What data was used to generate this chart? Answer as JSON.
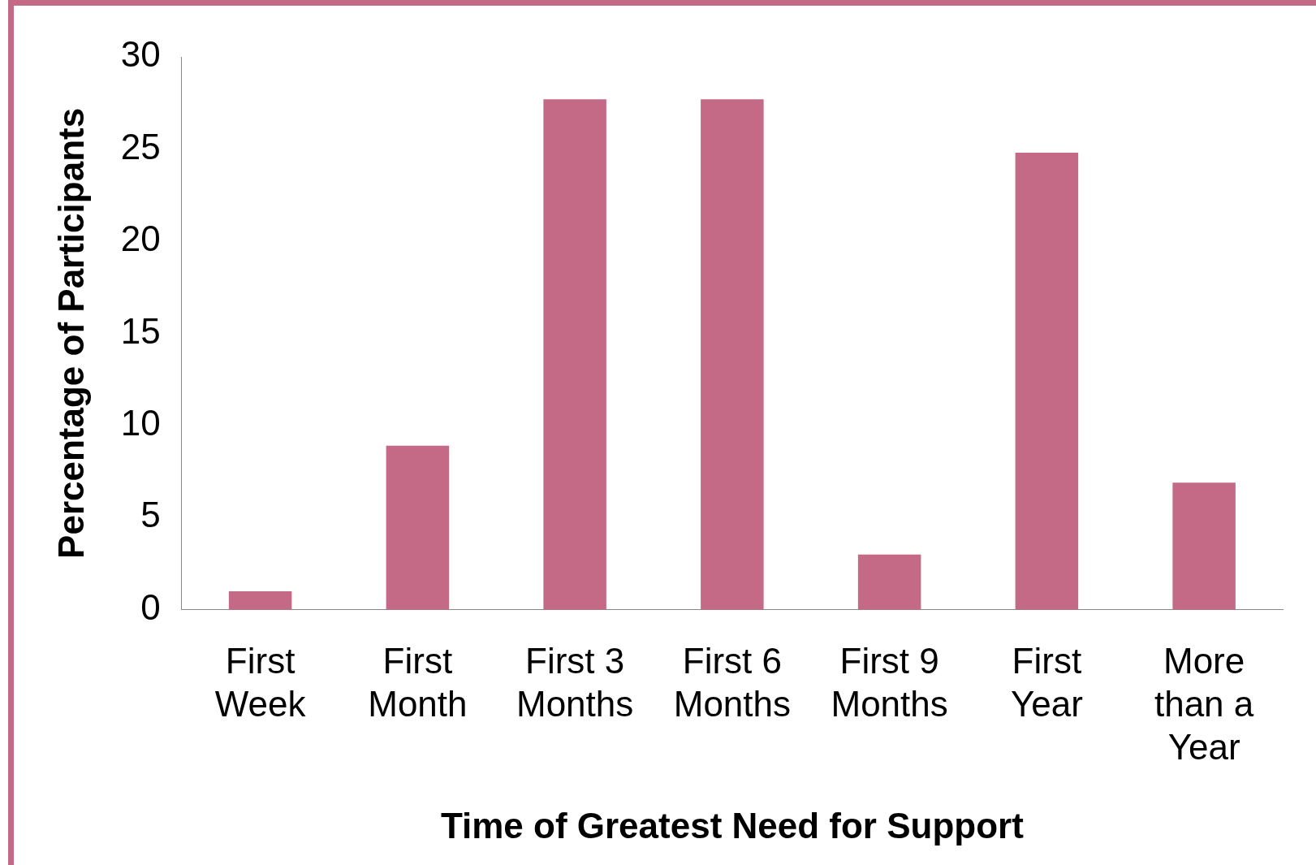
{
  "chart_data": {
    "type": "bar",
    "xlabel": "Time of Greatest Need for Support",
    "ylabel": "Percentage of Participants",
    "categories": [
      "First Week",
      "First Month",
      "First 3 Months",
      "First 6 Months",
      "First 9 Months",
      "First Year",
      "More than a Year"
    ],
    "values": [
      1,
      8.9,
      27.7,
      27.7,
      3,
      24.8,
      6.9
    ],
    "color": "#c46a87",
    "ylim": [
      0,
      30
    ],
    "yticks": [
      0,
      5,
      10,
      15,
      20,
      25,
      30
    ],
    "grid": false,
    "legend": false
  }
}
